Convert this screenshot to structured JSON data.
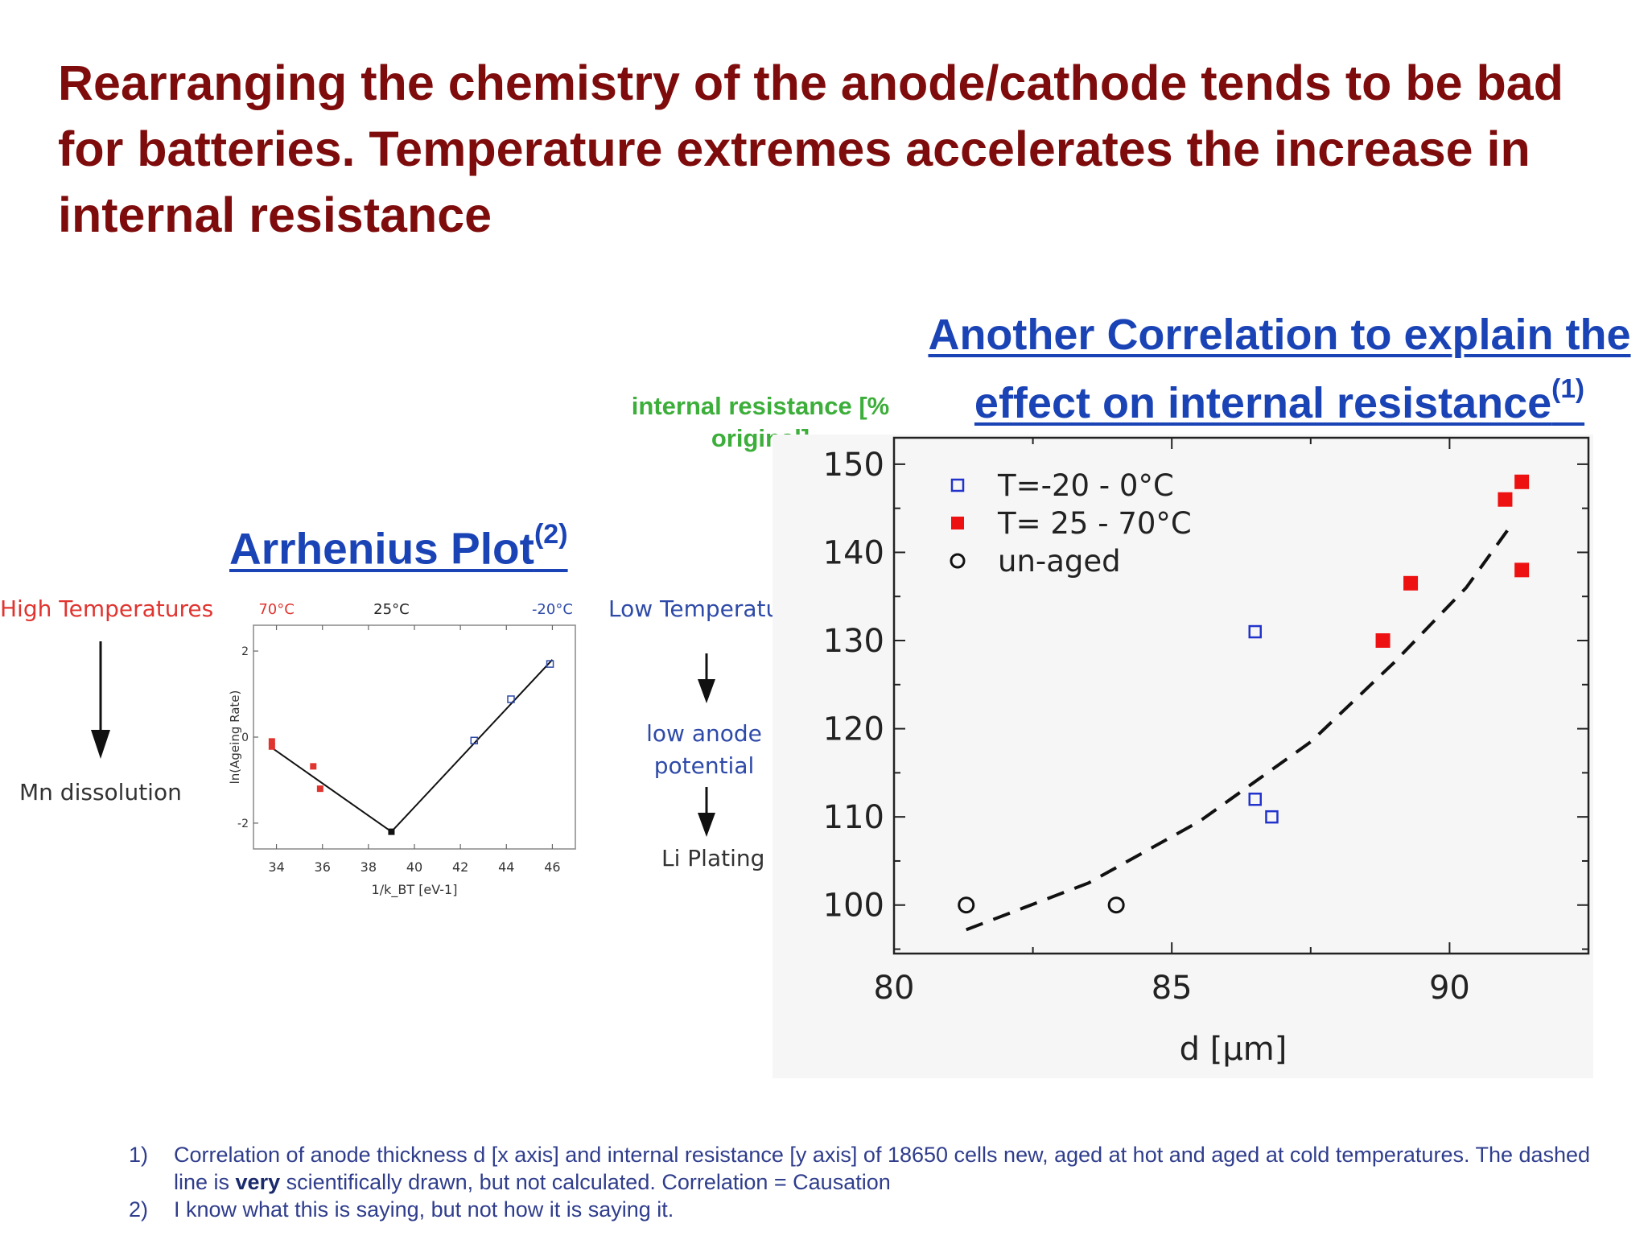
{
  "title": "Rearranging the chemistry of the anode/cathode tends to be bad for batteries. Temperature extremes accelerates the increase in internal resistance",
  "arrhenius": {
    "heading": "Arrhenius Plot",
    "heading_ref": "(2)",
    "high_temp_label": "High Temperatures",
    "high_temp_effect": "Mn dissolution",
    "low_temp_label": "Low Temperatures",
    "low_temp_effect": "low anode potential",
    "low_temp_result": "Li Plating"
  },
  "correlation": {
    "heading": "Another Correlation to explain the effect on internal resistance",
    "heading_ref": "(1)",
    "y_label": "internal resistance [% original]"
  },
  "chart_data": [
    {
      "type": "scatter",
      "title": "",
      "xlabel": "1/k_BT [eV-1]",
      "ylabel": "ln(Ageing Rate)",
      "xlim": [
        33,
        47
      ],
      "ylim": [
        -2.6,
        2.6
      ],
      "xticks": [
        "34",
        "36",
        "38",
        "40",
        "42",
        "44",
        "46"
      ],
      "yticks": [
        "2",
        "0",
        "-2"
      ],
      "top_labels": [
        {
          "text": "70°C",
          "x": 34,
          "color": "#e0342f"
        },
        {
          "text": "25°C",
          "x": 39,
          "color": "#222222"
        },
        {
          "text": "-20°C",
          "x": 46,
          "color": "#2e4aa8"
        }
      ],
      "series": [
        {
          "marker": "square",
          "color": "#e0342f",
          "points": [
            [
              33.8,
              -0.1
            ],
            [
              33.8,
              -0.22
            ],
            [
              35.6,
              -0.68
            ],
            [
              35.9,
              -1.2
            ]
          ]
        },
        {
          "marker": "square-open",
          "color": "#2e4aa8",
          "points": [
            [
              42.6,
              -0.08
            ],
            [
              44.2,
              0.88
            ],
            [
              45.9,
              1.7
            ]
          ]
        },
        {
          "marker": "square",
          "color": "#111111",
          "points": [
            [
              39.0,
              -2.2
            ]
          ]
        }
      ],
      "fit_lines": [
        {
          "color": "#111111",
          "points": [
            [
              33.8,
              -0.25
            ],
            [
              39.0,
              -2.2
            ]
          ]
        },
        {
          "color": "#111111",
          "points": [
            [
              39.0,
              -2.2
            ],
            [
              46.0,
              1.8
            ]
          ]
        }
      ]
    },
    {
      "type": "scatter",
      "title": "",
      "xlabel": "d [µm]",
      "ylabel": "",
      "xlim": [
        80,
        92.5
      ],
      "ylim": [
        94.5,
        153
      ],
      "xticks": [
        80,
        85,
        90
      ],
      "yticks": [
        100,
        110,
        120,
        130,
        140,
        150
      ],
      "legend_position": "top-left",
      "series": [
        {
          "name": "T=-20 - 0°C",
          "marker": "square-open",
          "color": "#2233cc",
          "points": [
            [
              86.5,
              131
            ],
            [
              86.5,
              112
            ],
            [
              86.8,
              110
            ]
          ]
        },
        {
          "name": "T= 25 - 70°C",
          "marker": "square",
          "color": "#ee1111",
          "points": [
            [
              88.8,
              130
            ],
            [
              89.3,
              136.5
            ],
            [
              91.0,
              146
            ],
            [
              91.3,
              148
            ],
            [
              91.3,
              138
            ]
          ]
        },
        {
          "name": "un-aged",
          "marker": "circle-open",
          "color": "#111111",
          "points": [
            [
              81.3,
              100
            ],
            [
              84.0,
              100
            ]
          ]
        }
      ],
      "trend": {
        "style": "dashed",
        "color": "#111111",
        "points": [
          [
            81.3,
            97.2
          ],
          [
            83.5,
            102.5
          ],
          [
            85.5,
            109.5
          ],
          [
            87.5,
            118.5
          ],
          [
            89.0,
            127.5
          ],
          [
            90.3,
            136
          ],
          [
            91.1,
            143
          ]
        ]
      }
    }
  ],
  "footnotes": [
    {
      "num": "1)",
      "before": "Correlation of anode thickness d [x axis] and internal resistance  [y axis] of 18650 cells new, aged at hot and aged at cold temperatures. The dashed line is ",
      "bold": "very",
      "after": " scientifically drawn, but not calculated. Correlation = Causation"
    },
    {
      "num": "2)",
      "before": "I know what this is saying, but not how it is saying it.",
      "bold": "",
      "after": ""
    }
  ]
}
